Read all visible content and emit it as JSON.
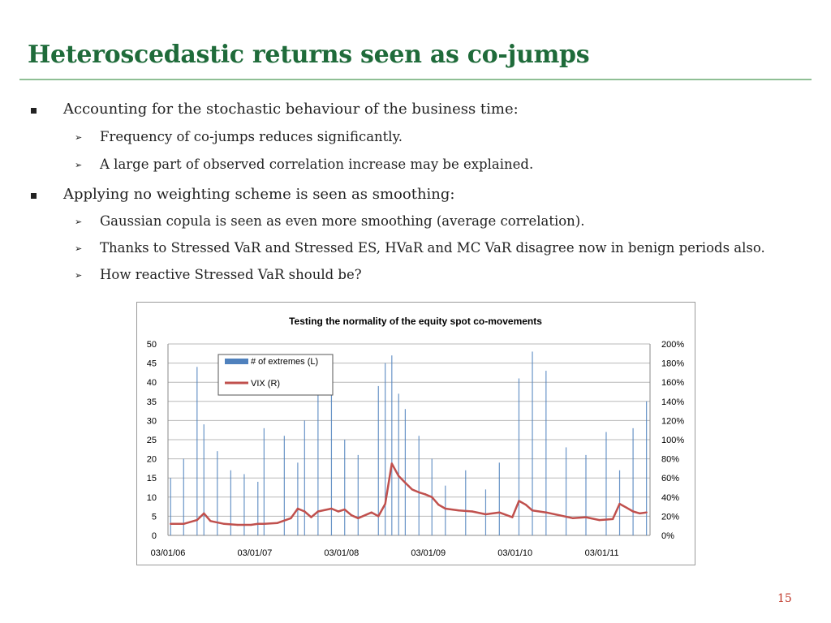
{
  "slide": {
    "title": "Heteroscedastic returns seen as co-jumps",
    "page_number": "15",
    "bullets": [
      {
        "text": "Accounting for the stochastic behaviour of the business time:",
        "sub": [
          "Frequency of co-jumps reduces significantly.",
          "A large part of observed correlation increase may be explained."
        ]
      },
      {
        "text": "Applying no weighting scheme is seen as smoothing:",
        "sub": [
          "Gaussian copula is seen as even more smoothing (average correlation).",
          "Thanks to Stressed VaR and Stressed ES, HVaR and MC VaR disagree now in benign periods also.",
          "How reactive Stressed VaR should be?"
        ]
      }
    ],
    "colors": {
      "title": "#1f6b3a",
      "rule": "#8fbf95",
      "page_number": "#c0392b"
    }
  },
  "chart_data": {
    "type": "bar",
    "title": "Testing the normality of the equity spot co-movements",
    "x_tick_labels": [
      "03/01/06",
      "03/01/07",
      "03/01/08",
      "03/01/09",
      "03/01/10",
      "03/01/11"
    ],
    "y_left": {
      "ticks": [
        "0",
        "5",
        "10",
        "15",
        "20",
        "25",
        "30",
        "35",
        "40",
        "45",
        "50"
      ],
      "ylim": [
        0,
        50
      ]
    },
    "y_right": {
      "ticks": [
        "0%",
        "20%",
        "40%",
        "60%",
        "80%",
        "100%",
        "120%",
        "140%",
        "160%",
        "180%",
        "200%"
      ],
      "ylim": [
        0,
        2.0
      ]
    },
    "legend_placement": "top-left inside plot",
    "grid": true,
    "series": [
      {
        "name": "# of extremes (L)",
        "type": "bar",
        "axis": "left",
        "color": "#4f81bd",
        "x": [
          "2006-01",
          "2006-03",
          "2006-05",
          "2006-06",
          "2006-08",
          "2006-10",
          "2006-12",
          "2007-02",
          "2007-03",
          "2007-06",
          "2007-08",
          "2007-09",
          "2007-11",
          "2008-01",
          "2008-03",
          "2008-05",
          "2008-08",
          "2008-09",
          "2008-10",
          "2008-11",
          "2008-12",
          "2009-02",
          "2009-04",
          "2009-06",
          "2009-09",
          "2009-12",
          "2010-02",
          "2010-05",
          "2010-07",
          "2010-09",
          "2010-12",
          "2011-03",
          "2011-06",
          "2011-08",
          "2011-10",
          "2011-12"
        ],
        "values": [
          15,
          20,
          44,
          29,
          22,
          17,
          16,
          14,
          28,
          26,
          19,
          30,
          45,
          47,
          25,
          21,
          39,
          45,
          47,
          37,
          33,
          26,
          20,
          13,
          17,
          12,
          19,
          41,
          48,
          43,
          23,
          21,
          27,
          17,
          28,
          35
        ]
      },
      {
        "name": "VIX (R)",
        "type": "line",
        "axis": "right",
        "color": "#c0504d",
        "x": [
          "2006-01",
          "2006-03",
          "2006-05",
          "2006-06",
          "2006-07",
          "2006-09",
          "2006-11",
          "2007-01",
          "2007-02",
          "2007-03",
          "2007-05",
          "2007-07",
          "2007-08",
          "2007-09",
          "2007-10",
          "2007-11",
          "2008-01",
          "2008-02",
          "2008-03",
          "2008-04",
          "2008-05",
          "2008-07",
          "2008-08",
          "2008-09",
          "2008-10",
          "2008-11",
          "2008-12",
          "2009-01",
          "2009-02",
          "2009-03",
          "2009-04",
          "2009-05",
          "2009-06",
          "2009-08",
          "2009-10",
          "2009-12",
          "2010-02",
          "2010-04",
          "2010-05",
          "2010-06",
          "2010-07",
          "2010-09",
          "2010-11",
          "2011-01",
          "2011-03",
          "2011-05",
          "2011-07",
          "2011-08",
          "2011-09",
          "2011-10",
          "2011-11",
          "2011-12"
        ],
        "values": [
          0.12,
          0.12,
          0.16,
          0.23,
          0.15,
          0.12,
          0.11,
          0.11,
          0.12,
          0.12,
          0.13,
          0.18,
          0.28,
          0.25,
          0.19,
          0.25,
          0.28,
          0.25,
          0.27,
          0.21,
          0.18,
          0.24,
          0.2,
          0.33,
          0.75,
          0.62,
          0.55,
          0.48,
          0.45,
          0.43,
          0.4,
          0.32,
          0.28,
          0.26,
          0.25,
          0.22,
          0.24,
          0.19,
          0.36,
          0.32,
          0.26,
          0.24,
          0.21,
          0.18,
          0.19,
          0.16,
          0.17,
          0.33,
          0.29,
          0.25,
          0.23,
          0.24
        ]
      }
    ]
  }
}
